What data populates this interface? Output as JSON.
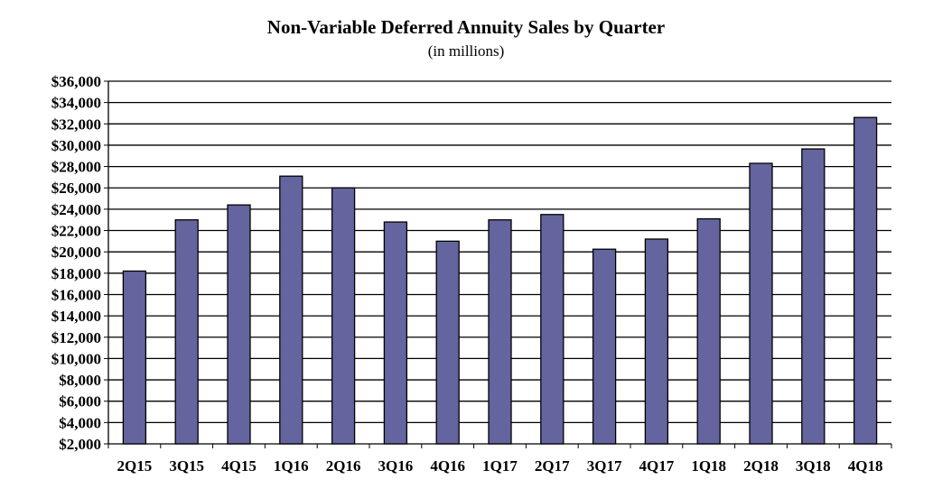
{
  "chart_data": {
    "type": "bar",
    "title": "Non-Variable Deferred Annuity Sales by Quarter",
    "subtitle": "(in millions)",
    "xlabel": "",
    "ylabel": "",
    "ylim": [
      2000,
      36000
    ],
    "ytick_step": 2000,
    "ytick_labels": [
      "$2,000",
      "$4,000",
      "$6,000",
      "$8,000",
      "$10,000",
      "$12,000",
      "$14,000",
      "$16,000",
      "$18,000",
      "$20,000",
      "$22,000",
      "$24,000",
      "$26,000",
      "$28,000",
      "$30,000",
      "$32,000",
      "$34,000",
      "$36,000"
    ],
    "grid": true,
    "categories": [
      "2Q15",
      "3Q15",
      "4Q15",
      "1Q16",
      "2Q16",
      "3Q16",
      "4Q16",
      "1Q17",
      "2Q17",
      "3Q17",
      "4Q17",
      "1Q18",
      "2Q18",
      "3Q18",
      "4Q18"
    ],
    "values": [
      18200,
      23000,
      24400,
      27100,
      26000,
      22800,
      21000,
      23000,
      23500,
      20250,
      21200,
      23100,
      28300,
      29650,
      32600
    ],
    "bar_color": "#64649e"
  }
}
